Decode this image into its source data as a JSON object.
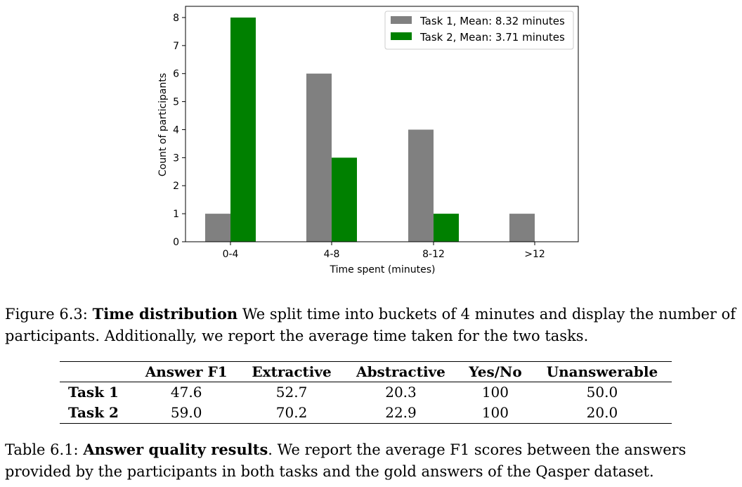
{
  "chart_data": {
    "type": "bar",
    "categories": [
      "0-4",
      "4-8",
      "8-12",
      ">12"
    ],
    "series": [
      {
        "name": "Task 1, Mean: 8.32 minutes",
        "values": [
          1,
          6,
          4,
          1
        ],
        "color": "#808080"
      },
      {
        "name": "Task 2, Mean: 3.71 minutes",
        "values": [
          8,
          3,
          1,
          0
        ],
        "color": "#008000"
      }
    ],
    "xlabel": "Time spent (minutes)",
    "ylabel": "Count of participants",
    "ylim": [
      0,
      8.4
    ],
    "yticks": [
      0,
      1,
      2,
      3,
      4,
      5,
      6,
      7,
      8
    ],
    "legend_position": "top-right",
    "grid": false
  },
  "figure_caption": {
    "label": "Figure 6.3:",
    "title": "Time distribution",
    "text": "We split time into buckets of 4 minutes and display the number of participants. Additionally, we report the average time taken for the two tasks."
  },
  "table": {
    "headers": [
      "",
      "Answer F1",
      "Extractive",
      "Abstractive",
      "Yes/No",
      "Unanswerable"
    ],
    "rows": [
      {
        "label": "Task 1",
        "values": [
          "47.6",
          "52.7",
          "20.3",
          "100",
          "50.0"
        ]
      },
      {
        "label": "Task 2",
        "values": [
          "59.0",
          "70.2",
          "22.9",
          "100",
          "20.0"
        ]
      }
    ]
  },
  "table_caption": {
    "label": "Table 6.1:",
    "title": "Answer quality results",
    "text": ". We report the average F1 scores between the answers provided by the participants in both tasks and the gold answers of the Qasper dataset."
  }
}
